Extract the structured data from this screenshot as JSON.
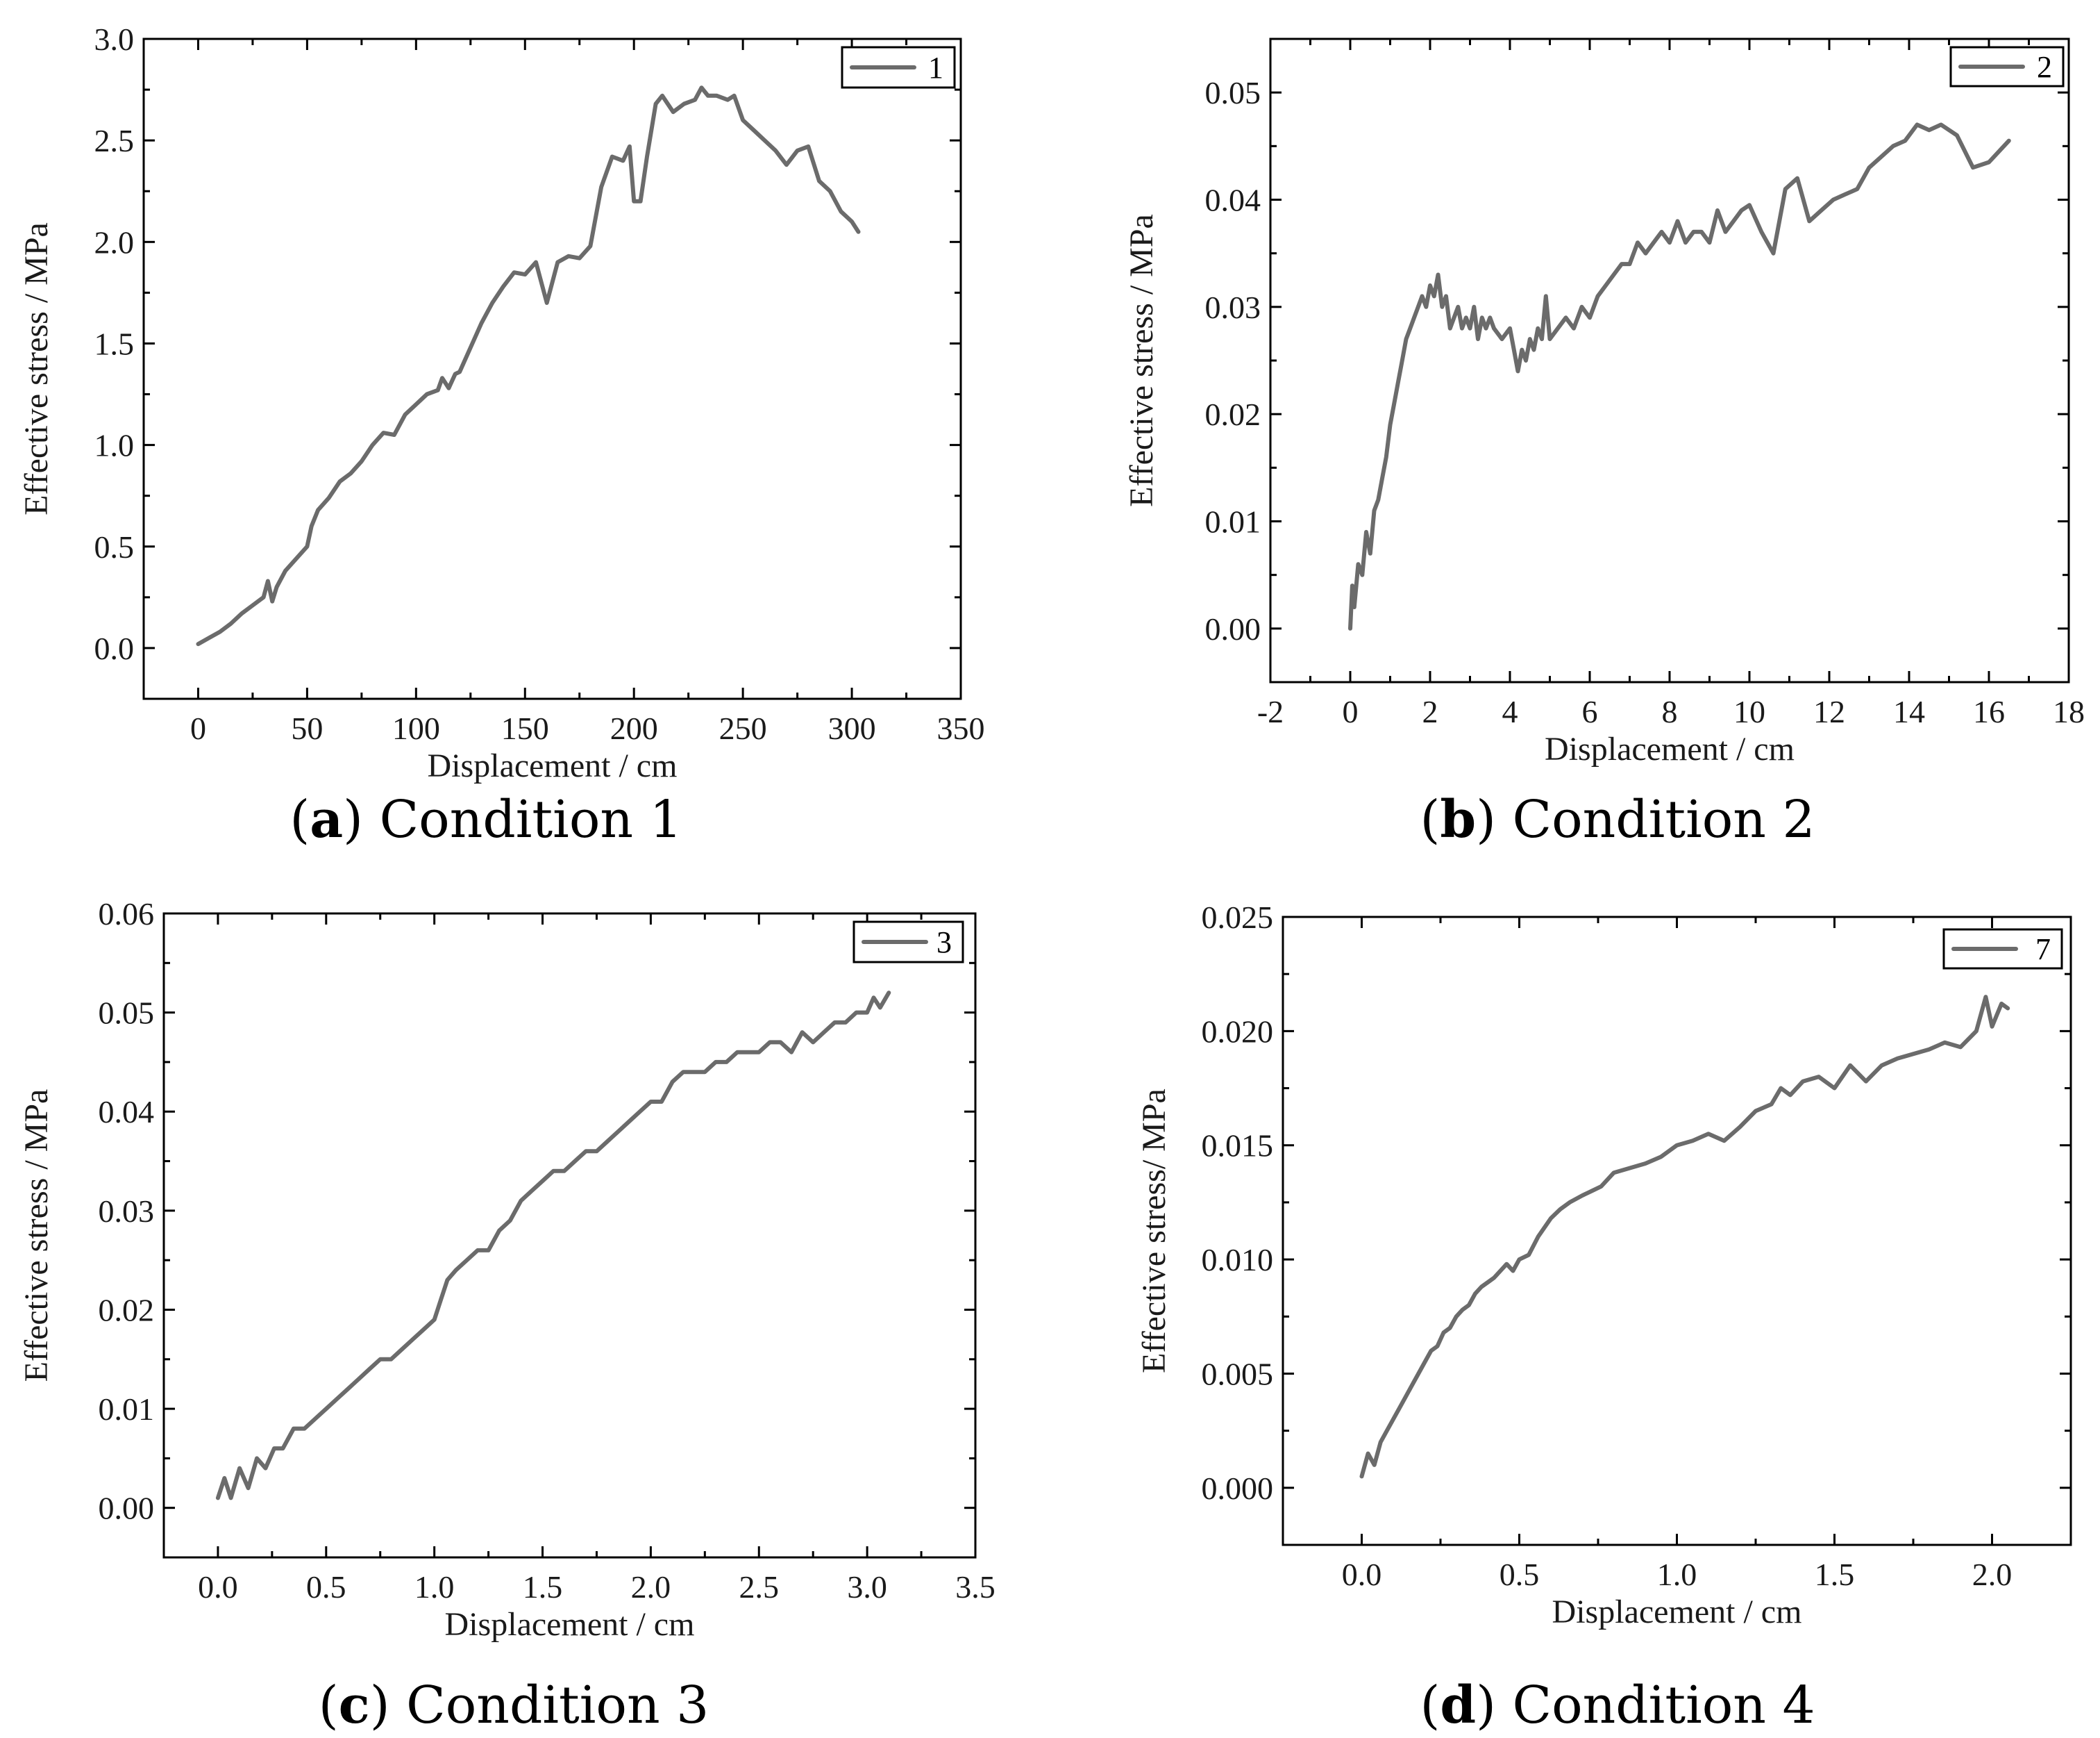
{
  "chart_data": [
    {
      "type": "line",
      "caption": {
        "letter": "a",
        "text": "Condition 1"
      },
      "xlabel": "Displacement / cm",
      "ylabel": "Effective stress / MPa",
      "xlim": [
        -25,
        350
      ],
      "ylim": [
        -0.25,
        3.0
      ],
      "xticks": [
        "0",
        "50",
        "100",
        "150",
        "200",
        "250",
        "300",
        "350"
      ],
      "xtick_values": [
        0,
        50,
        100,
        150,
        200,
        250,
        300,
        350
      ],
      "yticks": [
        "0.0",
        "0.5",
        "1.0",
        "1.5",
        "2.0",
        "2.5",
        "3.0"
      ],
      "ytick_values": [
        0,
        0.5,
        1.0,
        1.5,
        2.0,
        2.5,
        3.0
      ],
      "legend": "1",
      "series": [
        {
          "name": "1",
          "x": [
            0,
            5,
            10,
            15,
            20,
            25,
            30,
            32,
            34,
            36,
            40,
            45,
            50,
            52,
            55,
            60,
            65,
            70,
            75,
            80,
            85,
            90,
            95,
            100,
            105,
            110,
            112,
            115,
            118,
            120,
            125,
            130,
            135,
            140,
            145,
            150,
            155,
            158,
            160,
            165,
            170,
            175,
            180,
            185,
            190,
            195,
            198,
            200,
            203,
            206,
            210,
            213,
            218,
            223,
            228,
            231,
            234,
            238,
            243,
            246,
            250,
            255,
            260,
            265,
            270,
            275,
            280,
            285,
            290,
            295,
            300,
            303
          ],
          "y": [
            0.02,
            0.05,
            0.08,
            0.12,
            0.17,
            0.21,
            0.25,
            0.33,
            0.23,
            0.3,
            0.38,
            0.44,
            0.5,
            0.6,
            0.68,
            0.74,
            0.82,
            0.86,
            0.92,
            1.0,
            1.06,
            1.05,
            1.15,
            1.2,
            1.25,
            1.27,
            1.33,
            1.28,
            1.35,
            1.36,
            1.48,
            1.6,
            1.7,
            1.78,
            1.85,
            1.84,
            1.9,
            1.78,
            1.7,
            1.9,
            1.93,
            1.92,
            1.98,
            2.27,
            2.42,
            2.4,
            2.47,
            2.2,
            2.2,
            2.42,
            2.68,
            2.72,
            2.64,
            2.68,
            2.7,
            2.76,
            2.72,
            2.72,
            2.7,
            2.72,
            2.6,
            2.55,
            2.5,
            2.45,
            2.38,
            2.45,
            2.47,
            2.3,
            2.25,
            2.15,
            2.1,
            2.05
          ]
        }
      ]
    },
    {
      "type": "line",
      "caption": {
        "letter": "b",
        "text": "Condition 2"
      },
      "xlabel": "Displacement / cm",
      "ylabel": "Effective stress / MPa",
      "xlim": [
        -2,
        18
      ],
      "ylim": [
        -0.005,
        0.055
      ],
      "xticks": [
        "-2",
        "0",
        "2",
        "4",
        "6",
        "8",
        "10",
        "12",
        "14",
        "16",
        "18"
      ],
      "xtick_values": [
        -2,
        0,
        2,
        4,
        6,
        8,
        10,
        12,
        14,
        16,
        18
      ],
      "yticks": [
        "0.00",
        "0.01",
        "0.02",
        "0.03",
        "0.04",
        "0.05"
      ],
      "ytick_values": [
        0,
        0.01,
        0.02,
        0.03,
        0.04,
        0.05
      ],
      "legend": "2",
      "series": [
        {
          "name": "2",
          "x": [
            0,
            0.05,
            0.1,
            0.2,
            0.3,
            0.4,
            0.5,
            0.6,
            0.7,
            0.8,
            0.9,
            1.0,
            1.1,
            1.2,
            1.3,
            1.4,
            1.5,
            1.6,
            1.7,
            1.8,
            1.9,
            2.0,
            2.1,
            2.2,
            2.3,
            2.4,
            2.5,
            2.6,
            2.7,
            2.8,
            2.9,
            3.0,
            3.1,
            3.2,
            3.3,
            3.4,
            3.5,
            3.6,
            3.8,
            4.0,
            4.1,
            4.2,
            4.3,
            4.4,
            4.5,
            4.6,
            4.7,
            4.8,
            4.9,
            5.0,
            5.2,
            5.4,
            5.6,
            5.8,
            6.0,
            6.2,
            6.4,
            6.6,
            6.8,
            7.0,
            7.2,
            7.4,
            7.6,
            7.8,
            8.0,
            8.2,
            8.4,
            8.6,
            8.8,
            9.0,
            9.2,
            9.4,
            9.6,
            9.8,
            10.0,
            10.3,
            10.6,
            10.9,
            11.2,
            11.5,
            11.8,
            12.1,
            12.4,
            12.7,
            13.0,
            13.3,
            13.6,
            13.9,
            14.2,
            14.5,
            14.8,
            15.2,
            15.6,
            16.0,
            16.5
          ],
          "y": [
            0.0,
            0.004,
            0.002,
            0.006,
            0.005,
            0.009,
            0.007,
            0.011,
            0.012,
            0.014,
            0.016,
            0.019,
            0.021,
            0.023,
            0.025,
            0.027,
            0.028,
            0.029,
            0.03,
            0.031,
            0.03,
            0.032,
            0.031,
            0.033,
            0.03,
            0.031,
            0.028,
            0.029,
            0.03,
            0.028,
            0.029,
            0.028,
            0.03,
            0.027,
            0.029,
            0.028,
            0.029,
            0.028,
            0.027,
            0.028,
            0.026,
            0.024,
            0.026,
            0.025,
            0.027,
            0.026,
            0.028,
            0.027,
            0.031,
            0.027,
            0.028,
            0.029,
            0.028,
            0.03,
            0.029,
            0.031,
            0.032,
            0.033,
            0.034,
            0.034,
            0.036,
            0.035,
            0.036,
            0.037,
            0.036,
            0.038,
            0.036,
            0.037,
            0.037,
            0.036,
            0.039,
            0.037,
            0.038,
            0.039,
            0.0395,
            0.037,
            0.035,
            0.041,
            0.042,
            0.038,
            0.039,
            0.04,
            0.0405,
            0.041,
            0.043,
            0.044,
            0.045,
            0.0455,
            0.047,
            0.0465,
            0.047,
            0.046,
            0.043,
            0.0435,
            0.0455
          ]
        }
      ]
    },
    {
      "type": "line",
      "caption": {
        "letter": "c",
        "text": "Condition 3"
      },
      "xlabel": "Displacement / cm",
      "ylabel": "Effective stress / MPa",
      "xlim": [
        -0.25,
        3.5
      ],
      "ylim": [
        -0.005,
        0.06
      ],
      "xticks": [
        "0.0",
        "0.5",
        "1.0",
        "1.5",
        "2.0",
        "2.5",
        "3.0",
        "3.5"
      ],
      "xtick_values": [
        0,
        0.5,
        1.0,
        1.5,
        2.0,
        2.5,
        3.0,
        3.5
      ],
      "yticks": [
        "0.00",
        "0.01",
        "0.02",
        "0.03",
        "0.04",
        "0.05",
        "0.06"
      ],
      "ytick_values": [
        0,
        0.01,
        0.02,
        0.03,
        0.04,
        0.05,
        0.06
      ],
      "legend": "3",
      "series": [
        {
          "name": "3",
          "x": [
            0,
            0.03,
            0.06,
            0.1,
            0.14,
            0.18,
            0.22,
            0.26,
            0.3,
            0.35,
            0.4,
            0.45,
            0.5,
            0.55,
            0.6,
            0.65,
            0.7,
            0.75,
            0.8,
            0.85,
            0.9,
            0.95,
            1.0,
            1.03,
            1.06,
            1.1,
            1.15,
            1.2,
            1.25,
            1.3,
            1.35,
            1.4,
            1.45,
            1.5,
            1.55,
            1.6,
            1.65,
            1.7,
            1.75,
            1.8,
            1.85,
            1.9,
            1.95,
            2.0,
            2.05,
            2.1,
            2.15,
            2.2,
            2.25,
            2.3,
            2.35,
            2.4,
            2.45,
            2.5,
            2.55,
            2.6,
            2.65,
            2.7,
            2.75,
            2.8,
            2.85,
            2.9,
            2.95,
            3.0,
            3.03,
            3.06,
            3.1
          ],
          "y": [
            0.001,
            0.003,
            0.001,
            0.004,
            0.002,
            0.005,
            0.004,
            0.006,
            0.006,
            0.008,
            0.008,
            0.009,
            0.01,
            0.011,
            0.012,
            0.013,
            0.014,
            0.015,
            0.015,
            0.016,
            0.017,
            0.018,
            0.019,
            0.021,
            0.023,
            0.024,
            0.025,
            0.026,
            0.026,
            0.028,
            0.029,
            0.031,
            0.032,
            0.033,
            0.034,
            0.034,
            0.035,
            0.036,
            0.036,
            0.037,
            0.038,
            0.039,
            0.04,
            0.041,
            0.041,
            0.043,
            0.044,
            0.044,
            0.044,
            0.045,
            0.045,
            0.046,
            0.046,
            0.046,
            0.047,
            0.047,
            0.046,
            0.048,
            0.047,
            0.048,
            0.049,
            0.049,
            0.05,
            0.05,
            0.0515,
            0.0505,
            0.052
          ]
        }
      ]
    },
    {
      "type": "line",
      "caption": {
        "letter": "d",
        "text": "Condition 4"
      },
      "xlabel": "Displacement / cm",
      "ylabel": "Effective stress/ MPa",
      "xlim": [
        -0.25,
        2.25
      ],
      "ylim": [
        -0.0025,
        0.025
      ],
      "xticks": [
        "0.0",
        "0.5",
        "1.0",
        "1.5",
        "2.0"
      ],
      "xtick_values": [
        0,
        0.5,
        1.0,
        1.5,
        2.0
      ],
      "yticks": [
        "0.000",
        "0.005",
        "0.010",
        "0.015",
        "0.020",
        "0.025"
      ],
      "ytick_values": [
        0,
        0.005,
        0.01,
        0.015,
        0.02,
        0.025
      ],
      "legend": "7",
      "series": [
        {
          "name": "7",
          "x": [
            0,
            0.02,
            0.04,
            0.06,
            0.08,
            0.1,
            0.12,
            0.14,
            0.16,
            0.18,
            0.2,
            0.22,
            0.24,
            0.26,
            0.28,
            0.3,
            0.32,
            0.34,
            0.36,
            0.38,
            0.4,
            0.42,
            0.44,
            0.46,
            0.48,
            0.5,
            0.53,
            0.56,
            0.6,
            0.63,
            0.66,
            0.7,
            0.73,
            0.76,
            0.8,
            0.85,
            0.9,
            0.95,
            1.0,
            1.05,
            1.1,
            1.15,
            1.2,
            1.25,
            1.3,
            1.33,
            1.36,
            1.4,
            1.45,
            1.5,
            1.55,
            1.6,
            1.65,
            1.7,
            1.75,
            1.8,
            1.85,
            1.9,
            1.95,
            1.98,
            2.0,
            2.03,
            2.05
          ],
          "y": [
            0.0005,
            0.0015,
            0.001,
            0.002,
            0.0025,
            0.003,
            0.0035,
            0.004,
            0.0045,
            0.005,
            0.0055,
            0.006,
            0.0062,
            0.0068,
            0.007,
            0.0075,
            0.0078,
            0.008,
            0.0085,
            0.0088,
            0.009,
            0.0092,
            0.0095,
            0.0098,
            0.0095,
            0.01,
            0.0102,
            0.011,
            0.0118,
            0.0122,
            0.0125,
            0.0128,
            0.013,
            0.0132,
            0.0138,
            0.014,
            0.0142,
            0.0145,
            0.015,
            0.0152,
            0.0155,
            0.0152,
            0.0158,
            0.0165,
            0.0168,
            0.0175,
            0.0172,
            0.0178,
            0.018,
            0.0175,
            0.0185,
            0.0178,
            0.0185,
            0.0188,
            0.019,
            0.0192,
            0.0195,
            0.0193,
            0.02,
            0.0215,
            0.0202,
            0.0212,
            0.021
          ]
        }
      ]
    }
  ]
}
